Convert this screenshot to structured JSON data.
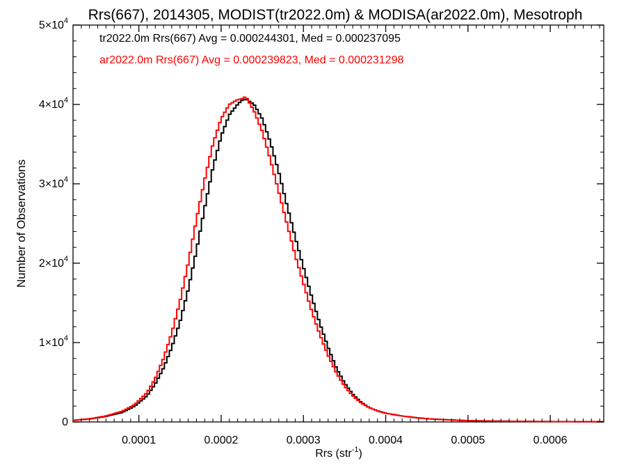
{
  "chart_data": {
    "type": "line",
    "title": "Rrs(667), 2014305, MODIST(tr2022.0m) & MODISA(ar2022.0m), Mesotroph",
    "xlabel": "Rrs (str",
    "xlabel_sup": "-1",
    "xlabel_end": ")",
    "ylabel": "Number of Observations",
    "xlim": [
      2e-05,
      0.000665
    ],
    "ylim": [
      0,
      50000
    ],
    "x_ticks": [
      {
        "value": 0.0001,
        "label": "0.0001"
      },
      {
        "value": 0.0002,
        "label": "0.0002"
      },
      {
        "value": 0.0003,
        "label": "0.0003"
      },
      {
        "value": 0.0004,
        "label": "0.0004"
      },
      {
        "value": 0.0005,
        "label": "0.0005"
      },
      {
        "value": 0.0006,
        "label": "0.0006"
      }
    ],
    "y_ticks": [
      {
        "value": 0,
        "base": "0",
        "exp": ""
      },
      {
        "value": 10000,
        "base": "1×10",
        "exp": "4"
      },
      {
        "value": 20000,
        "base": "2×10",
        "exp": "4"
      },
      {
        "value": 30000,
        "base": "3×10",
        "exp": "4"
      },
      {
        "value": 40000,
        "base": "4×10",
        "exp": "4"
      },
      {
        "value": 50000,
        "base": "5×10",
        "exp": "4"
      }
    ],
    "grid": false,
    "legend_position": "top-left",
    "annotations": [
      {
        "text": "tr2022.0m Rrs(667) Avg = 0.000244301, Med = 0.000237095",
        "color": "#000000"
      },
      {
        "text": "ar2022.0m Rrs(667) Avg = 0.000239823, Med = 0.000231298",
        "color": "#ff0000"
      }
    ],
    "series": [
      {
        "color": "#000000",
        "step": true,
        "points": [
          [
            2e-05,
            200
          ],
          [
            4e-05,
            380
          ],
          [
            6e-05,
            700
          ],
          [
            8e-05,
            1200
          ],
          [
            9.5e-05,
            2000
          ],
          [
            0.00011,
            3300
          ],
          [
            0.00012,
            4800
          ],
          [
            0.00013,
            6800
          ],
          [
            0.00014,
            9400
          ],
          [
            0.00015,
            12600
          ],
          [
            0.00016,
            16700
          ],
          [
            0.00017,
            21600
          ],
          [
            0.00018,
            27000
          ],
          [
            0.00019,
            32000
          ],
          [
            0.0002,
            36000
          ],
          [
            0.00021,
            38700
          ],
          [
            0.00022,
            40000
          ],
          [
            0.000225,
            40500
          ],
          [
            0.00023,
            40700
          ],
          [
            0.00024,
            40000
          ],
          [
            0.00025,
            38200
          ],
          [
            0.00026,
            35200
          ],
          [
            0.00027,
            31500
          ],
          [
            0.00028,
            27300
          ],
          [
            0.00029,
            23300
          ],
          [
            0.0003,
            19500
          ],
          [
            0.00031,
            15800
          ],
          [
            0.00032,
            12400
          ],
          [
            0.00033,
            9400
          ],
          [
            0.00034,
            6800
          ],
          [
            0.00035,
            4900
          ],
          [
            0.00036,
            3500
          ],
          [
            0.00037,
            2500
          ],
          [
            0.00038,
            1800
          ],
          [
            0.00039,
            1400
          ],
          [
            0.0004,
            1100
          ],
          [
            0.00042,
            750
          ],
          [
            0.00044,
            500
          ],
          [
            0.00046,
            350
          ],
          [
            0.00048,
            250
          ],
          [
            0.0005,
            170
          ],
          [
            0.00054,
            100
          ],
          [
            0.00058,
            60
          ],
          [
            0.00062,
            40
          ],
          [
            0.000665,
            30
          ]
        ]
      },
      {
        "color": "#ff0000",
        "step": true,
        "points": [
          [
            2e-05,
            200
          ],
          [
            4e-05,
            400
          ],
          [
            6e-05,
            750
          ],
          [
            8e-05,
            1350
          ],
          [
            9.5e-05,
            2200
          ],
          [
            0.00011,
            3700
          ],
          [
            0.00012,
            5500
          ],
          [
            0.00013,
            8000
          ],
          [
            0.00014,
            11200
          ],
          [
            0.00015,
            15200
          ],
          [
            0.00016,
            20000
          ],
          [
            0.00017,
            25500
          ],
          [
            0.00018,
            30500
          ],
          [
            0.00019,
            35000
          ],
          [
            0.0002,
            38200
          ],
          [
            0.00021,
            40000
          ],
          [
            0.00022,
            40600
          ],
          [
            0.000225,
            40700
          ],
          [
            0.00023,
            41000
          ],
          [
            0.00024,
            39200
          ],
          [
            0.00025,
            36600
          ],
          [
            0.00026,
            33000
          ],
          [
            0.00027,
            29000
          ],
          [
            0.00028,
            25000
          ],
          [
            0.00029,
            21000
          ],
          [
            0.0003,
            17500
          ],
          [
            0.00031,
            14000
          ],
          [
            0.00032,
            11000
          ],
          [
            0.00033,
            8400
          ],
          [
            0.00034,
            6200
          ],
          [
            0.00035,
            4500
          ],
          [
            0.00036,
            3300
          ],
          [
            0.00037,
            2400
          ],
          [
            0.00038,
            1800
          ],
          [
            0.00039,
            1400
          ],
          [
            0.0004,
            1100
          ],
          [
            0.00042,
            750
          ],
          [
            0.00044,
            500
          ],
          [
            0.00046,
            350
          ],
          [
            0.00048,
            250
          ],
          [
            0.0005,
            170
          ],
          [
            0.00054,
            100
          ],
          [
            0.00058,
            60
          ],
          [
            0.00062,
            40
          ],
          [
            0.000665,
            30
          ]
        ]
      }
    ]
  }
}
